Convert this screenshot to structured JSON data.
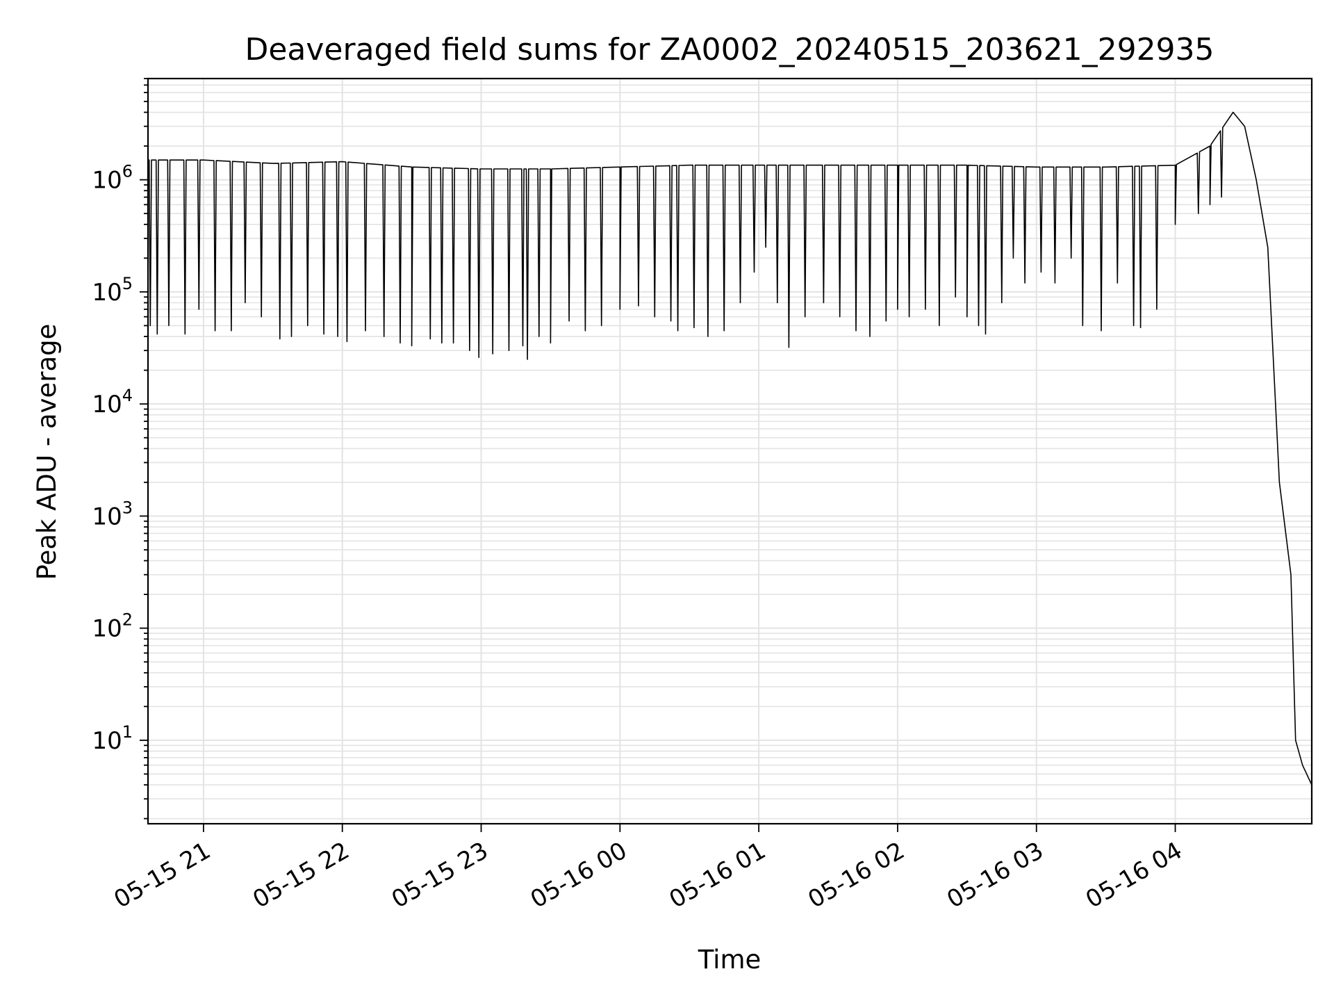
{
  "chart_data": {
    "type": "line",
    "title": "Deaveraged field sums for ZA0002_20240515_203621_292935",
    "xlabel": "Time",
    "ylabel": "Peak ADU - average",
    "yscale": "log",
    "grid": true,
    "line_color": "#000000",
    "grid_color": "#e3e3e3",
    "x_tick_labels": [
      "05-15 21",
      "05-15 22",
      "05-15 23",
      "05-16 00",
      "05-16 01",
      "05-16 02",
      "05-16 03",
      "05-16 04"
    ],
    "x_tick_times": [
      "2024-05-15 21:00",
      "2024-05-15 22:00",
      "2024-05-15 23:00",
      "2024-05-16 00:00",
      "2024-05-16 01:00",
      "2024-05-16 02:00",
      "2024-05-16 03:00",
      "2024-05-16 04:00"
    ],
    "xlim": [
      "2024-05-15 20:36",
      "2024-05-16 04:59"
    ],
    "y_tick_labels": [
      {
        "base": "10",
        "exp": "1"
      },
      {
        "base": "10",
        "exp": "2"
      },
      {
        "base": "10",
        "exp": "3"
      },
      {
        "base": "10",
        "exp": "4"
      },
      {
        "base": "10",
        "exp": "5"
      },
      {
        "base": "10",
        "exp": "6"
      }
    ],
    "ylim": [
      1.8,
      8000000
    ],
    "series": [
      {
        "x": [
          "2024-05-15 20:36",
          "2024-05-15 21:00",
          "2024-05-15 21:30",
          "2024-05-15 22:00",
          "2024-05-15 22:30",
          "2024-05-15 23:00",
          "2024-05-15 23:30",
          "2024-05-16 00:00",
          "2024-05-16 00:30",
          "2024-05-16 01:00",
          "2024-05-16 01:30",
          "2024-05-16 02:00",
          "2024-05-16 02:30",
          "2024-05-16 03:00",
          "2024-05-16 03:30",
          "2024-05-16 04:00",
          "2024-05-16 04:15",
          "2024-05-16 04:25",
          "2024-05-16 04:30",
          "2024-05-16 04:35",
          "2024-05-16 04:40",
          "2024-05-16 04:45",
          "2024-05-16 04:50",
          "2024-05-16 04:52",
          "2024-05-16 04:55",
          "2024-05-16 04:59"
        ],
        "y": [
          1500000,
          1500000,
          1400000,
          1450000,
          1300000,
          1250000,
          1250000,
          1300000,
          1350000,
          1350000,
          1350000,
          1350000,
          1350000,
          1300000,
          1300000,
          1350000,
          2000000,
          4000000,
          3000000,
          1000000,
          250000,
          2000,
          300,
          10,
          6,
          4
        ],
        "dips": [
          {
            "t": "2024-05-15 20:37",
            "v": 50000
          },
          {
            "t": "2024-05-15 20:40",
            "v": 42000
          },
          {
            "t": "2024-05-15 20:45",
            "v": 50000
          },
          {
            "t": "2024-05-15 20:52",
            "v": 42000
          },
          {
            "t": "2024-05-15 20:58",
            "v": 70000
          },
          {
            "t": "2024-05-15 21:05",
            "v": 45000
          },
          {
            "t": "2024-05-15 21:12",
            "v": 45000
          },
          {
            "t": "2024-05-15 21:18",
            "v": 80000
          },
          {
            "t": "2024-05-15 21:25",
            "v": 60000
          },
          {
            "t": "2024-05-15 21:33",
            "v": 38000
          },
          {
            "t": "2024-05-15 21:38",
            "v": 40000
          },
          {
            "t": "2024-05-15 21:45",
            "v": 50000
          },
          {
            "t": "2024-05-15 21:52",
            "v": 42000
          },
          {
            "t": "2024-05-15 21:58",
            "v": 40000
          },
          {
            "t": "2024-05-15 22:02",
            "v": 36000
          },
          {
            "t": "2024-05-15 22:10",
            "v": 45000
          },
          {
            "t": "2024-05-15 22:18",
            "v": 40000
          },
          {
            "t": "2024-05-15 22:25",
            "v": 35000
          },
          {
            "t": "2024-05-15 22:30",
            "v": 33000
          },
          {
            "t": "2024-05-15 22:38",
            "v": 38000
          },
          {
            "t": "2024-05-15 22:43",
            "v": 35000
          },
          {
            "t": "2024-05-15 22:48",
            "v": 35000
          },
          {
            "t": "2024-05-15 22:55",
            "v": 30000
          },
          {
            "t": "2024-05-15 22:59",
            "v": 26000
          },
          {
            "t": "2024-05-15 23:05",
            "v": 28000
          },
          {
            "t": "2024-05-15 23:12",
            "v": 30000
          },
          {
            "t": "2024-05-15 23:18",
            "v": 33000
          },
          {
            "t": "2024-05-15 23:20",
            "v": 25000
          },
          {
            "t": "2024-05-15 23:25",
            "v": 40000
          },
          {
            "t": "2024-05-15 23:30",
            "v": 35000
          },
          {
            "t": "2024-05-15 23:38",
            "v": 55000
          },
          {
            "t": "2024-05-15 23:45",
            "v": 45000
          },
          {
            "t": "2024-05-15 23:52",
            "v": 50000
          },
          {
            "t": "2024-05-16 00:00",
            "v": 70000
          },
          {
            "t": "2024-05-16 00:08",
            "v": 75000
          },
          {
            "t": "2024-05-16 00:15",
            "v": 60000
          },
          {
            "t": "2024-05-16 00:22",
            "v": 55000
          },
          {
            "t": "2024-05-16 00:25",
            "v": 45000
          },
          {
            "t": "2024-05-16 00:32",
            "v": 48000
          },
          {
            "t": "2024-05-16 00:38",
            "v": 40000
          },
          {
            "t": "2024-05-16 00:45",
            "v": 45000
          },
          {
            "t": "2024-05-16 00:52",
            "v": 80000
          },
          {
            "t": "2024-05-16 00:58",
            "v": 150000
          },
          {
            "t": "2024-05-16 01:03",
            "v": 250000
          },
          {
            "t": "2024-05-16 01:08",
            "v": 80000
          },
          {
            "t": "2024-05-16 01:13",
            "v": 32000
          },
          {
            "t": "2024-05-16 01:20",
            "v": 60000
          },
          {
            "t": "2024-05-16 01:28",
            "v": 80000
          },
          {
            "t": "2024-05-16 01:35",
            "v": 60000
          },
          {
            "t": "2024-05-16 01:42",
            "v": 45000
          },
          {
            "t": "2024-05-16 01:48",
            "v": 40000
          },
          {
            "t": "2024-05-16 01:55",
            "v": 55000
          },
          {
            "t": "2024-05-16 02:00",
            "v": 70000
          },
          {
            "t": "2024-05-16 02:05",
            "v": 60000
          },
          {
            "t": "2024-05-16 02:12",
            "v": 70000
          },
          {
            "t": "2024-05-16 02:18",
            "v": 50000
          },
          {
            "t": "2024-05-16 02:25",
            "v": 90000
          },
          {
            "t": "2024-05-16 02:30",
            "v": 60000
          },
          {
            "t": "2024-05-16 02:35",
            "v": 50000
          },
          {
            "t": "2024-05-16 02:38",
            "v": 42000
          },
          {
            "t": "2024-05-16 02:45",
            "v": 80000
          },
          {
            "t": "2024-05-16 02:50",
            "v": 200000
          },
          {
            "t": "2024-05-16 02:55",
            "v": 120000
          },
          {
            "t": "2024-05-16 03:02",
            "v": 150000
          },
          {
            "t": "2024-05-16 03:08",
            "v": 120000
          },
          {
            "t": "2024-05-16 03:15",
            "v": 200000
          },
          {
            "t": "2024-05-16 03:20",
            "v": 50000
          },
          {
            "t": "2024-05-16 03:28",
            "v": 45000
          },
          {
            "t": "2024-05-16 03:35",
            "v": 120000
          },
          {
            "t": "2024-05-16 03:42",
            "v": 50000
          },
          {
            "t": "2024-05-16 03:45",
            "v": 48000
          },
          {
            "t": "2024-05-16 03:52",
            "v": 70000
          },
          {
            "t": "2024-05-16 04:00",
            "v": 400000
          },
          {
            "t": "2024-05-16 04:10",
            "v": 500000
          },
          {
            "t": "2024-05-16 04:15",
            "v": 600000
          },
          {
            "t": "2024-05-16 04:20",
            "v": 700000
          }
        ]
      }
    ]
  }
}
